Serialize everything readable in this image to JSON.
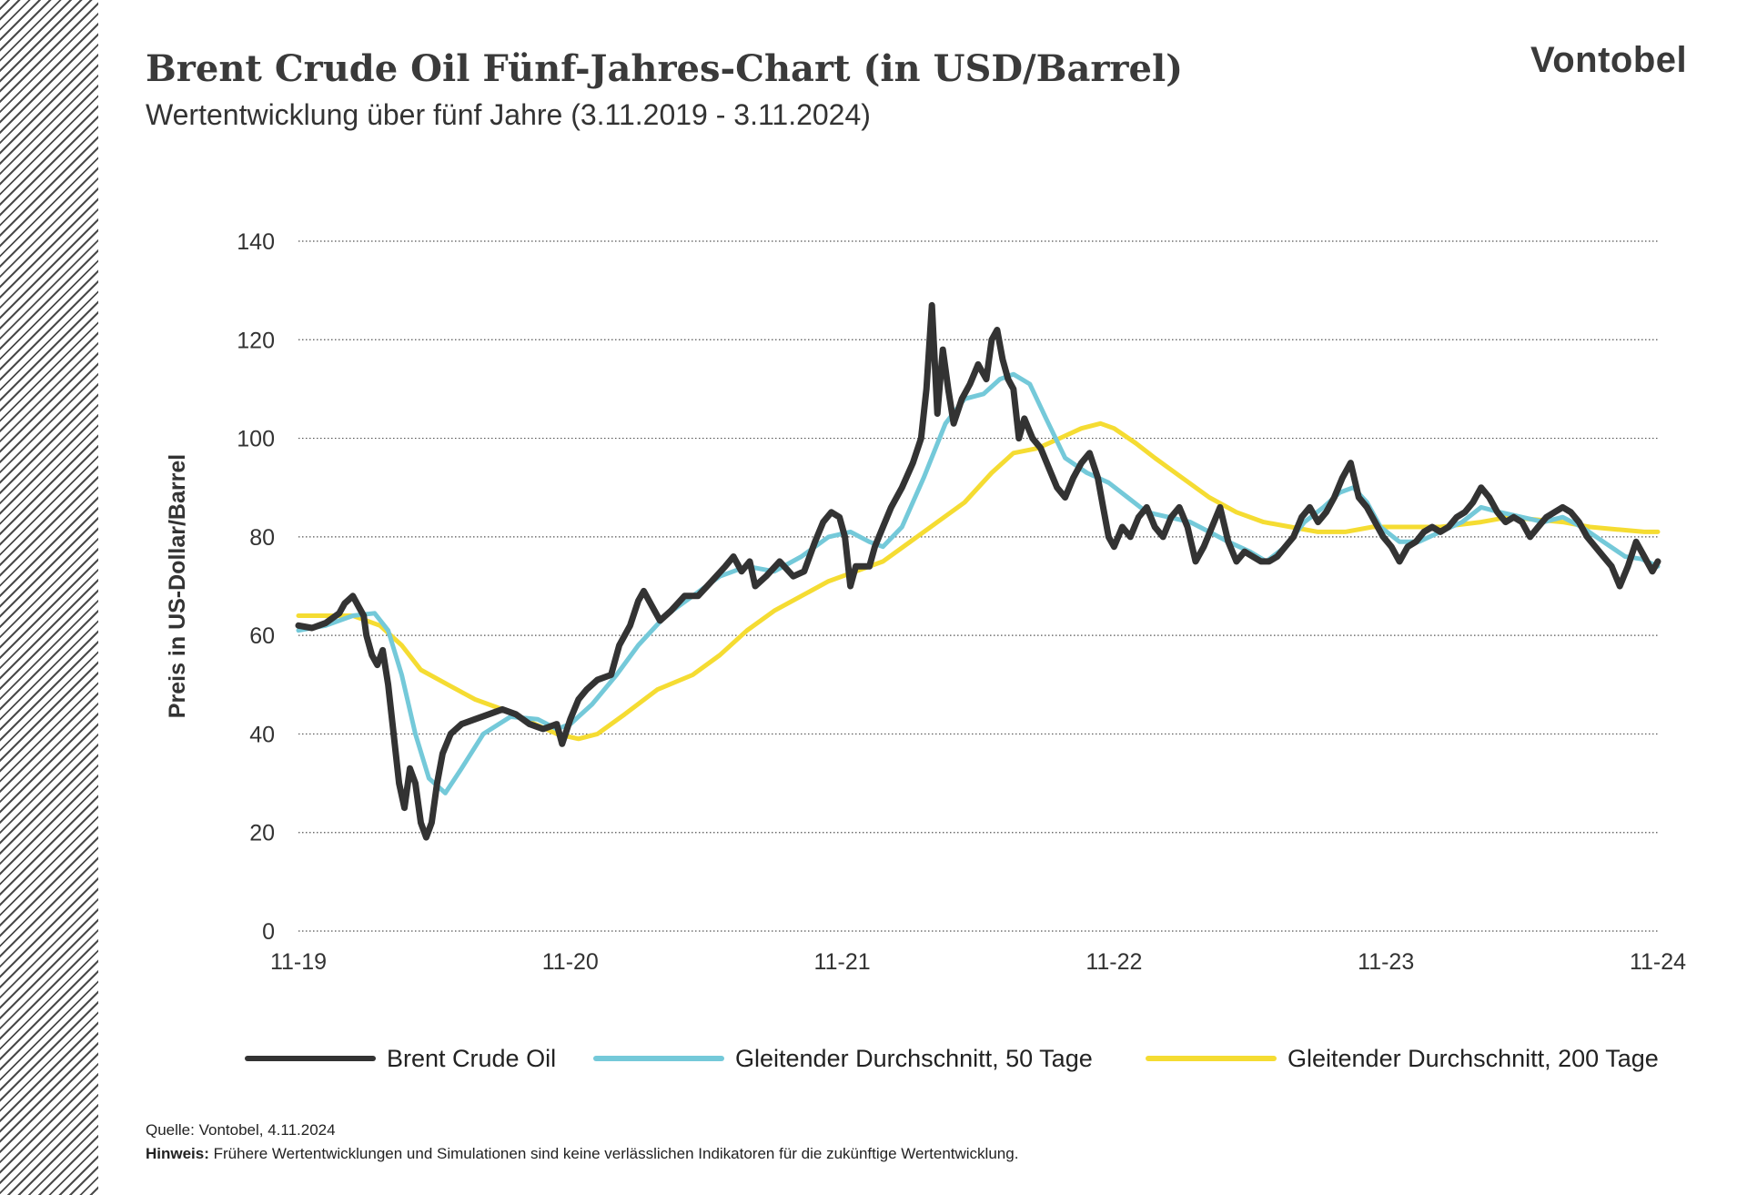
{
  "header": {
    "title": "Brent Crude Oil Fünf-Jahres-Chart (in USD/Barrel)",
    "subtitle": "Wertentwicklung über fünf Jahre (3.11.2019 - 3.11.2024)",
    "logo": "Vontobel"
  },
  "footer": {
    "source": "Quelle:  Vontobel,  4.11.2024",
    "note_label": "Hinweis:",
    "note_text": " Frühere Wertentwicklungen und Simulationen sind keine verlässlichen Indikatoren für die zukünftige Wertentwicklung."
  },
  "chart_data": {
    "type": "line",
    "title": "Brent Crude Oil Fünf-Jahres-Chart (in USD/Barrel)",
    "xlabel": "",
    "ylabel": "Preis in US-Dollar/Barrel",
    "xlim": [
      0,
      5
    ],
    "ylim": [
      0,
      140
    ],
    "yticks": [
      0,
      20,
      40,
      60,
      80,
      100,
      120,
      140
    ],
    "xtick_labels": [
      "11-19",
      "11-20",
      "11-21",
      "11-22",
      "11-23",
      "11-24"
    ],
    "xtick_positions": [
      0,
      1,
      2,
      3,
      4,
      5
    ],
    "grid": "horizontal dotted",
    "legend_position": "bottom",
    "series": [
      {
        "name": "Brent Crude Oil",
        "color": "#333333",
        "points": [
          [
            0,
            62
          ],
          [
            0.05,
            61.5
          ],
          [
            0.1,
            62.5
          ],
          [
            0.15,
            64.5
          ],
          [
            0.17,
            66.5
          ],
          [
            0.2,
            68
          ],
          [
            0.22,
            66
          ],
          [
            0.24,
            64
          ],
          [
            0.25,
            60
          ],
          [
            0.27,
            56
          ],
          [
            0.29,
            54
          ],
          [
            0.31,
            57
          ],
          [
            0.33,
            50
          ],
          [
            0.35,
            40
          ],
          [
            0.37,
            30
          ],
          [
            0.39,
            25
          ],
          [
            0.41,
            33
          ],
          [
            0.43,
            30
          ],
          [
            0.45,
            22
          ],
          [
            0.47,
            19
          ],
          [
            0.49,
            22
          ],
          [
            0.51,
            30
          ],
          [
            0.53,
            36
          ],
          [
            0.56,
            40
          ],
          [
            0.6,
            42
          ],
          [
            0.65,
            43
          ],
          [
            0.7,
            44
          ],
          [
            0.75,
            45
          ],
          [
            0.8,
            44
          ],
          [
            0.85,
            42
          ],
          [
            0.9,
            41
          ],
          [
            0.95,
            42
          ],
          [
            0.97,
            38
          ],
          [
            1,
            43
          ],
          [
            1.03,
            47
          ],
          [
            1.06,
            49
          ],
          [
            1.1,
            51
          ],
          [
            1.15,
            52
          ],
          [
            1.18,
            58
          ],
          [
            1.22,
            62
          ],
          [
            1.25,
            67
          ],
          [
            1.27,
            69
          ],
          [
            1.3,
            66
          ],
          [
            1.33,
            63
          ],
          [
            1.37,
            65
          ],
          [
            1.42,
            68
          ],
          [
            1.47,
            68
          ],
          [
            1.52,
            71
          ],
          [
            1.57,
            74
          ],
          [
            1.6,
            76
          ],
          [
            1.63,
            73
          ],
          [
            1.66,
            75
          ],
          [
            1.68,
            70
          ],
          [
            1.72,
            72
          ],
          [
            1.77,
            75
          ],
          [
            1.82,
            72
          ],
          [
            1.86,
            73
          ],
          [
            1.9,
            79
          ],
          [
            1.93,
            83
          ],
          [
            1.96,
            85
          ],
          [
            1.99,
            84
          ],
          [
            2.01,
            80
          ],
          [
            2.03,
            70
          ],
          [
            2.05,
            74
          ],
          [
            2.1,
            74
          ],
          [
            2.12,
            78
          ],
          [
            2.15,
            82
          ],
          [
            2.18,
            86
          ],
          [
            2.22,
            90
          ],
          [
            2.26,
            95
          ],
          [
            2.29,
            100
          ],
          [
            2.31,
            110
          ],
          [
            2.33,
            127
          ],
          [
            2.35,
            105
          ],
          [
            2.37,
            118
          ],
          [
            2.39,
            110
          ],
          [
            2.41,
            103
          ],
          [
            2.44,
            108
          ],
          [
            2.47,
            111
          ],
          [
            2.5,
            115
          ],
          [
            2.53,
            112
          ],
          [
            2.55,
            120
          ],
          [
            2.57,
            122
          ],
          [
            2.59,
            116
          ],
          [
            2.61,
            112
          ],
          [
            2.63,
            110
          ],
          [
            2.65,
            100
          ],
          [
            2.67,
            104
          ],
          [
            2.7,
            100
          ],
          [
            2.73,
            98
          ],
          [
            2.76,
            94
          ],
          [
            2.79,
            90
          ],
          [
            2.82,
            88
          ],
          [
            2.85,
            92
          ],
          [
            2.88,
            95
          ],
          [
            2.91,
            97
          ],
          [
            2.94,
            92
          ],
          [
            2.96,
            86
          ],
          [
            2.98,
            80
          ],
          [
            3,
            78
          ],
          [
            3.03,
            82
          ],
          [
            3.06,
            80
          ],
          [
            3.09,
            84
          ],
          [
            3.12,
            86
          ],
          [
            3.15,
            82
          ],
          [
            3.18,
            80
          ],
          [
            3.21,
            84
          ],
          [
            3.24,
            86
          ],
          [
            3.27,
            82
          ],
          [
            3.3,
            75
          ],
          [
            3.33,
            78
          ],
          [
            3.36,
            82
          ],
          [
            3.39,
            86
          ],
          [
            3.42,
            79
          ],
          [
            3.45,
            75
          ],
          [
            3.48,
            77
          ],
          [
            3.51,
            76
          ],
          [
            3.54,
            75
          ],
          [
            3.57,
            75
          ],
          [
            3.6,
            76
          ],
          [
            3.63,
            78
          ],
          [
            3.66,
            80
          ],
          [
            3.69,
            84
          ],
          [
            3.72,
            86
          ],
          [
            3.75,
            83
          ],
          [
            3.78,
            85
          ],
          [
            3.81,
            88
          ],
          [
            3.84,
            92
          ],
          [
            3.87,
            95
          ],
          [
            3.9,
            88
          ],
          [
            3.93,
            86
          ],
          [
            3.96,
            83
          ],
          [
            3.99,
            80
          ],
          [
            4.02,
            78
          ],
          [
            4.05,
            75
          ],
          [
            4.08,
            78
          ],
          [
            4.11,
            79
          ],
          [
            4.14,
            81
          ],
          [
            4.17,
            82
          ],
          [
            4.2,
            81
          ],
          [
            4.23,
            82
          ],
          [
            4.26,
            84
          ],
          [
            4.29,
            85
          ],
          [
            4.32,
            87
          ],
          [
            4.35,
            90
          ],
          [
            4.38,
            88
          ],
          [
            4.41,
            85
          ],
          [
            4.44,
            83
          ],
          [
            4.47,
            84
          ],
          [
            4.5,
            83
          ],
          [
            4.53,
            80
          ],
          [
            4.56,
            82
          ],
          [
            4.59,
            84
          ],
          [
            4.62,
            85
          ],
          [
            4.65,
            86
          ],
          [
            4.68,
            85
          ],
          [
            4.71,
            83
          ],
          [
            4.74,
            80
          ],
          [
            4.77,
            78
          ],
          [
            4.8,
            76
          ],
          [
            4.83,
            74
          ],
          [
            4.86,
            70
          ],
          [
            4.89,
            74
          ],
          [
            4.92,
            79
          ],
          [
            4.95,
            76
          ],
          [
            4.98,
            73
          ],
          [
            5,
            75
          ]
        ]
      },
      {
        "name": "Gleitender Durchschnitt, 50 Tage",
        "color": "#74C9D9",
        "points": [
          [
            0,
            61
          ],
          [
            0.1,
            62
          ],
          [
            0.2,
            64
          ],
          [
            0.28,
            64.5
          ],
          [
            0.33,
            61
          ],
          [
            0.38,
            52
          ],
          [
            0.43,
            40
          ],
          [
            0.48,
            31
          ],
          [
            0.54,
            28
          ],
          [
            0.6,
            33
          ],
          [
            0.68,
            40
          ],
          [
            0.78,
            43.5
          ],
          [
            0.88,
            43
          ],
          [
            0.95,
            41
          ],
          [
            1,
            42
          ],
          [
            1.08,
            46
          ],
          [
            1.17,
            52
          ],
          [
            1.25,
            58
          ],
          [
            1.35,
            64
          ],
          [
            1.45,
            68
          ],
          [
            1.55,
            72
          ],
          [
            1.65,
            74
          ],
          [
            1.75,
            73
          ],
          [
            1.85,
            76
          ],
          [
            1.95,
            80
          ],
          [
            2.03,
            81
          ],
          [
            2.1,
            79
          ],
          [
            2.15,
            78
          ],
          [
            2.22,
            82
          ],
          [
            2.3,
            92
          ],
          [
            2.38,
            103
          ],
          [
            2.45,
            108
          ],
          [
            2.52,
            109
          ],
          [
            2.58,
            112
          ],
          [
            2.63,
            113
          ],
          [
            2.69,
            111
          ],
          [
            2.75,
            104
          ],
          [
            2.82,
            96
          ],
          [
            2.9,
            93
          ],
          [
            2.98,
            91
          ],
          [
            3.05,
            88
          ],
          [
            3.12,
            85
          ],
          [
            3.2,
            84
          ],
          [
            3.28,
            83
          ],
          [
            3.35,
            81
          ],
          [
            3.42,
            79
          ],
          [
            3.5,
            77
          ],
          [
            3.56,
            75
          ],
          [
            3.63,
            78
          ],
          [
            3.7,
            83
          ],
          [
            3.77,
            86
          ],
          [
            3.83,
            89
          ],
          [
            3.88,
            90
          ],
          [
            3.93,
            87
          ],
          [
            3.98,
            82
          ],
          [
            4.05,
            79
          ],
          [
            4.12,
            79
          ],
          [
            4.2,
            81
          ],
          [
            4.28,
            83
          ],
          [
            4.35,
            86
          ],
          [
            4.42,
            85
          ],
          [
            4.5,
            84
          ],
          [
            4.58,
            83
          ],
          [
            4.65,
            84
          ],
          [
            4.72,
            82
          ],
          [
            4.8,
            79
          ],
          [
            4.88,
            76
          ],
          [
            4.94,
            75.5
          ],
          [
            5,
            74
          ]
        ]
      },
      {
        "name": "Gleitender Durchschnitt, 200 Tage",
        "color": "#F5DC32",
        "points": [
          [
            0,
            64
          ],
          [
            0.1,
            64
          ],
          [
            0.2,
            64
          ],
          [
            0.3,
            62
          ],
          [
            0.38,
            58
          ],
          [
            0.45,
            53
          ],
          [
            0.55,
            50
          ],
          [
            0.65,
            47
          ],
          [
            0.75,
            45
          ],
          [
            0.85,
            42.5
          ],
          [
            0.95,
            40
          ],
          [
            1.03,
            39
          ],
          [
            1.1,
            40
          ],
          [
            1.2,
            44
          ],
          [
            1.32,
            49
          ],
          [
            1.45,
            52
          ],
          [
            1.55,
            56
          ],
          [
            1.65,
            61
          ],
          [
            1.75,
            65
          ],
          [
            1.85,
            68
          ],
          [
            1.95,
            71
          ],
          [
            2.05,
            73
          ],
          [
            2.15,
            75
          ],
          [
            2.25,
            79
          ],
          [
            2.35,
            83
          ],
          [
            2.45,
            87
          ],
          [
            2.55,
            93
          ],
          [
            2.63,
            97
          ],
          [
            2.72,
            98
          ],
          [
            2.8,
            100
          ],
          [
            2.88,
            102
          ],
          [
            2.95,
            103
          ],
          [
            3,
            102
          ],
          [
            3.08,
            99
          ],
          [
            3.15,
            96
          ],
          [
            3.25,
            92
          ],
          [
            3.35,
            88
          ],
          [
            3.45,
            85
          ],
          [
            3.55,
            83
          ],
          [
            3.65,
            82
          ],
          [
            3.75,
            81
          ],
          [
            3.85,
            81
          ],
          [
            3.95,
            82
          ],
          [
            4.05,
            82
          ],
          [
            4.2,
            82
          ],
          [
            4.35,
            83
          ],
          [
            4.45,
            84
          ],
          [
            4.55,
            83.5
          ],
          [
            4.65,
            83
          ],
          [
            4.75,
            82
          ],
          [
            4.85,
            81.5
          ],
          [
            4.95,
            81
          ],
          [
            5,
            81
          ]
        ]
      }
    ]
  }
}
